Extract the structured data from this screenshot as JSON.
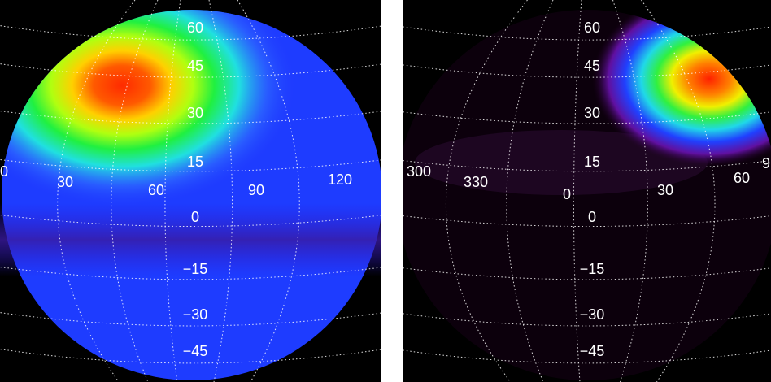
{
  "panels": [
    {
      "latitude_labels": [
        "60",
        "45",
        "30",
        "15",
        "0",
        "−15",
        "−30",
        "−45"
      ],
      "longitude_labels": [
        "0",
        "30",
        "60",
        "90",
        "120"
      ]
    },
    {
      "latitude_labels": [
        "60",
        "45",
        "30",
        "15",
        "0",
        "−15",
        "−30",
        "−45"
      ],
      "longitude_labels": [
        "300",
        "330",
        "0",
        "30",
        "60",
        "9"
      ]
    }
  ]
}
